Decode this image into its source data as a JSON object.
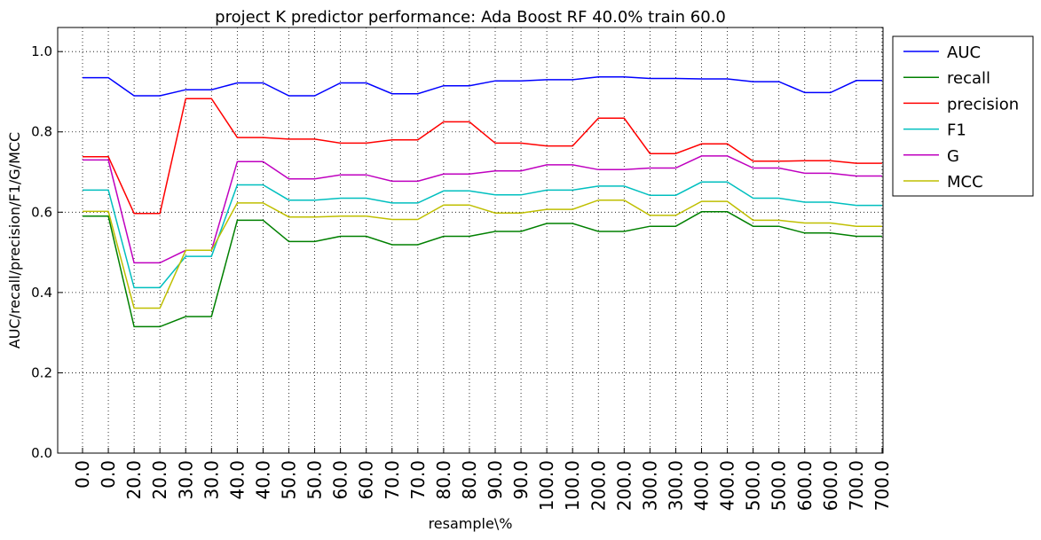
{
  "chart_data": {
    "type": "line",
    "title": "project K predictor performance: Ada Boost RF 40.0% train 60.0",
    "xlabel": "resample\\%",
    "ylabel": "AUC/recall/precision/F1/G/MCC",
    "ylim": [
      0.0,
      1.06
    ],
    "y_ticks": [
      "0.0",
      "0.2",
      "0.4",
      "0.6",
      "0.8",
      "1.0"
    ],
    "categories": [
      "0.0",
      "0.0",
      "20.0",
      "20.0",
      "30.0",
      "30.0",
      "40.0",
      "40.0",
      "50.0",
      "50.0",
      "60.0",
      "60.0",
      "70.0",
      "70.0",
      "80.0",
      "80.0",
      "90.0",
      "90.0",
      "100.0",
      "100.0",
      "200.0",
      "200.0",
      "300.0",
      "300.0",
      "400.0",
      "400.0",
      "500.0",
      "500.0",
      "600.0",
      "600.0",
      "700.0",
      "700.0"
    ],
    "grid": true,
    "legend_position": "outside-right",
    "series": [
      {
        "name": "AUC",
        "color": "#0000ff",
        "values": [
          0.935,
          0.935,
          0.89,
          0.89,
          0.905,
          0.905,
          0.922,
          0.922,
          0.89,
          0.89,
          0.922,
          0.922,
          0.895,
          0.895,
          0.915,
          0.915,
          0.927,
          0.927,
          0.93,
          0.93,
          0.937,
          0.937,
          0.933,
          0.933,
          0.932,
          0.932,
          0.925,
          0.925,
          0.898,
          0.898,
          0.928,
          0.928
        ]
      },
      {
        "name": "recall",
        "color": "#008000",
        "values": [
          0.59,
          0.59,
          0.315,
          0.315,
          0.34,
          0.34,
          0.58,
          0.58,
          0.527,
          0.527,
          0.54,
          0.54,
          0.519,
          0.519,
          0.54,
          0.54,
          0.552,
          0.552,
          0.572,
          0.572,
          0.552,
          0.552,
          0.565,
          0.565,
          0.601,
          0.601,
          0.565,
          0.565,
          0.548,
          0.548,
          0.54,
          0.54
        ]
      },
      {
        "name": "precision",
        "color": "#ff0000",
        "values": [
          0.738,
          0.738,
          0.597,
          0.597,
          0.883,
          0.883,
          0.786,
          0.786,
          0.782,
          0.782,
          0.772,
          0.772,
          0.78,
          0.78,
          0.825,
          0.825,
          0.772,
          0.772,
          0.765,
          0.765,
          0.834,
          0.834,
          0.746,
          0.746,
          0.77,
          0.77,
          0.727,
          0.727,
          0.728,
          0.728,
          0.722,
          0.722
        ]
      },
      {
        "name": "F1",
        "color": "#00bfbf",
        "values": [
          0.655,
          0.655,
          0.412,
          0.412,
          0.49,
          0.49,
          0.668,
          0.668,
          0.63,
          0.63,
          0.635,
          0.635,
          0.623,
          0.623,
          0.653,
          0.653,
          0.643,
          0.643,
          0.655,
          0.655,
          0.665,
          0.665,
          0.642,
          0.642,
          0.675,
          0.675,
          0.635,
          0.635,
          0.625,
          0.625,
          0.617,
          0.617
        ]
      },
      {
        "name": "G",
        "color": "#bf00bf",
        "values": [
          0.73,
          0.73,
          0.474,
          0.474,
          0.505,
          0.505,
          0.726,
          0.726,
          0.683,
          0.683,
          0.693,
          0.693,
          0.677,
          0.677,
          0.695,
          0.695,
          0.703,
          0.703,
          0.718,
          0.718,
          0.706,
          0.706,
          0.71,
          0.71,
          0.74,
          0.74,
          0.71,
          0.71,
          0.697,
          0.697,
          0.69,
          0.69
        ]
      },
      {
        "name": "MCC",
        "color": "#bfbf00",
        "values": [
          0.602,
          0.602,
          0.361,
          0.361,
          0.505,
          0.505,
          0.623,
          0.623,
          0.588,
          0.588,
          0.59,
          0.59,
          0.582,
          0.582,
          0.618,
          0.618,
          0.598,
          0.598,
          0.607,
          0.607,
          0.63,
          0.63,
          0.592,
          0.592,
          0.627,
          0.627,
          0.58,
          0.58,
          0.573,
          0.573,
          0.565,
          0.565
        ]
      }
    ]
  }
}
